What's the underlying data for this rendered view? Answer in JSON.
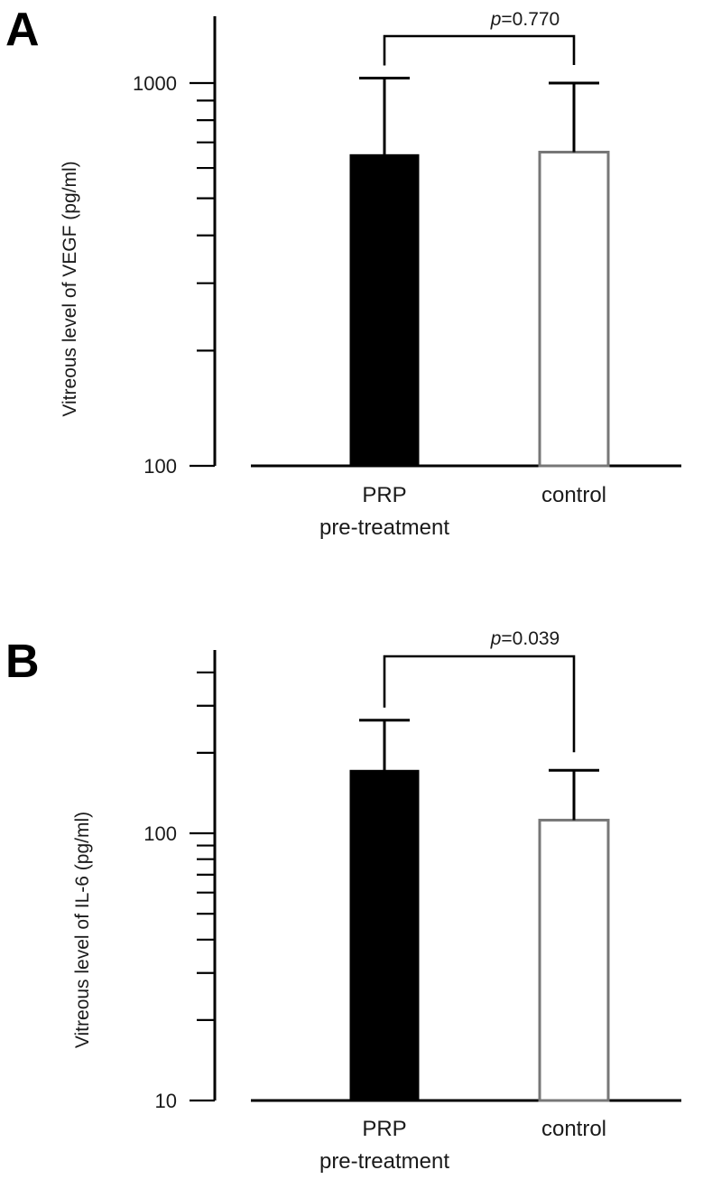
{
  "chart_data": [
    {
      "panel": "A",
      "type": "bar",
      "scale": "log",
      "categories": [
        "PRP\npre-treatment",
        "control"
      ],
      "values": [
        650,
        660
      ],
      "error_upper": [
        1030,
        1000
      ],
      "ylabel": "Vitreous level of VEGF (pg/ml)",
      "ylim": [
        100,
        1700
      ],
      "ticks_labeled": [
        {
          "value": 100,
          "label": "100"
        },
        {
          "value": 1000,
          "label": "1000"
        }
      ],
      "comparison": {
        "label": "p=0.770",
        "between": [
          0,
          1
        ]
      },
      "colors": [
        "#000000",
        "#ffffff"
      ]
    },
    {
      "panel": "B",
      "type": "bar",
      "scale": "log",
      "categories": [
        "PRP\npre-treatment",
        "control"
      ],
      "values": [
        172,
        112
      ],
      "error_upper": [
        265,
        172
      ],
      "ylabel": "Vitreous level of IL-6 (pg/ml)",
      "ylim": [
        10,
        500
      ],
      "ticks_labeled": [
        {
          "value": 10,
          "label": "10"
        },
        {
          "value": 100,
          "label": "100"
        }
      ],
      "comparison": {
        "label": "p=0.039",
        "between": [
          0,
          1
        ]
      },
      "colors": [
        "#000000",
        "#ffffff"
      ]
    }
  ]
}
